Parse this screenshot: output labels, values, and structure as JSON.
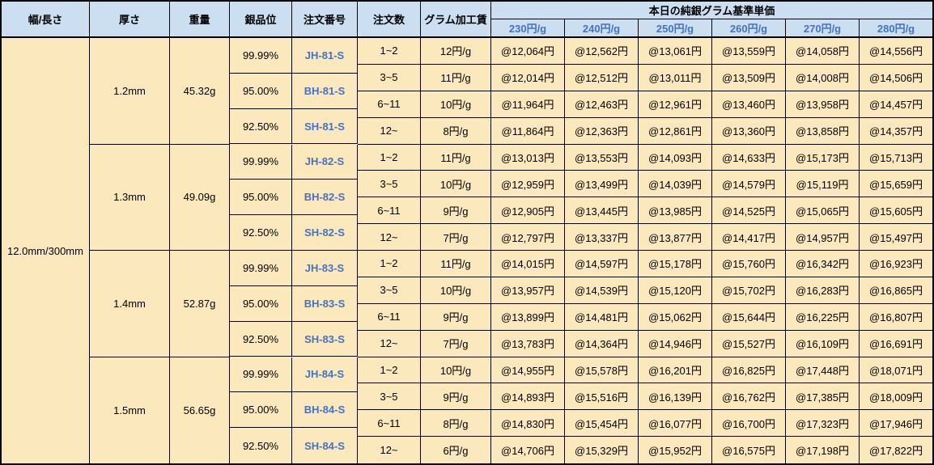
{
  "header": {
    "col_width_length": "幅/長さ",
    "col_thickness": "厚さ",
    "col_weight": "重量",
    "col_purity": "銀品位",
    "col_order_no": "注文番号",
    "col_order_qty": "注文数",
    "col_fee": "グラム加工賃",
    "price_group_title": "本日の純銀グラム基準単価",
    "price_columns": [
      "230円/g",
      "240円/g",
      "250円/g",
      "260円/g",
      "270円/g",
      "280円/g"
    ]
  },
  "size_label": "12.0mm/300mm",
  "groups": [
    {
      "thickness": "1.2mm",
      "weight": "45.32g",
      "purities": [
        {
          "purity": "99.99%",
          "order_no": "JH-81-S"
        },
        {
          "purity": "95.00%",
          "order_no": "BH-81-S"
        },
        {
          "purity": "92.50%",
          "order_no": "SH-81-S"
        }
      ],
      "rows": [
        {
          "qty": "1~2",
          "fee": "12円/g",
          "prices": [
            "@12,064円",
            "@12,562円",
            "@13,061円",
            "@13,559円",
            "@14,058円",
            "@14,556円"
          ]
        },
        {
          "qty": "3~5",
          "fee": "11円/g",
          "prices": [
            "@12,014円",
            "@12,512円",
            "@13,011円",
            "@13,509円",
            "@14,008円",
            "@14,506円"
          ]
        },
        {
          "qty": "6~11",
          "fee": "10円/g",
          "prices": [
            "@11,964円",
            "@12,463円",
            "@12,961円",
            "@13,460円",
            "@13,958円",
            "@14,457円"
          ]
        },
        {
          "qty": "12~",
          "fee": "8円/g",
          "prices": [
            "@11,864円",
            "@12,363円",
            "@12,861円",
            "@13,360円",
            "@13,858円",
            "@14,357円"
          ]
        }
      ]
    },
    {
      "thickness": "1.3mm",
      "weight": "49.09g",
      "purities": [
        {
          "purity": "99.99%",
          "order_no": "JH-82-S"
        },
        {
          "purity": "95.00%",
          "order_no": "BH-82-S"
        },
        {
          "purity": "92.50%",
          "order_no": "SH-82-S"
        }
      ],
      "rows": [
        {
          "qty": "1~2",
          "fee": "11円/g",
          "prices": [
            "@13,013円",
            "@13,553円",
            "@14,093円",
            "@14,633円",
            "@15,173円",
            "@15,713円"
          ]
        },
        {
          "qty": "3~5",
          "fee": "10円/g",
          "prices": [
            "@12,959円",
            "@13,499円",
            "@14,039円",
            "@14,579円",
            "@15,119円",
            "@15,659円"
          ]
        },
        {
          "qty": "6~11",
          "fee": "9円/g",
          "prices": [
            "@12,905円",
            "@13,445円",
            "@13,985円",
            "@14,525円",
            "@15,065円",
            "@15,605円"
          ]
        },
        {
          "qty": "12~",
          "fee": "7円/g",
          "prices": [
            "@12,797円",
            "@13,337円",
            "@13,877円",
            "@14,417円",
            "@14,957円",
            "@15,497円"
          ]
        }
      ]
    },
    {
      "thickness": "1.4mm",
      "weight": "52.87g",
      "purities": [
        {
          "purity": "99.99%",
          "order_no": "JH-83-S"
        },
        {
          "purity": "95.00%",
          "order_no": "BH-83-S"
        },
        {
          "purity": "92.50%",
          "order_no": "SH-83-S"
        }
      ],
      "rows": [
        {
          "qty": "1~2",
          "fee": "11円/g",
          "prices": [
            "@14,015円",
            "@14,597円",
            "@15,178円",
            "@15,760円",
            "@16,342円",
            "@16,923円"
          ]
        },
        {
          "qty": "3~5",
          "fee": "10円/g",
          "prices": [
            "@13,957円",
            "@14,539円",
            "@15,120円",
            "@15,702円",
            "@16,283円",
            "@16,865円"
          ]
        },
        {
          "qty": "6~11",
          "fee": "9円/g",
          "prices": [
            "@13,899円",
            "@14,481円",
            "@15,062円",
            "@15,644円",
            "@16,225円",
            "@16,807円"
          ]
        },
        {
          "qty": "12~",
          "fee": "7円/g",
          "prices": [
            "@13,783円",
            "@14,364円",
            "@14,946円",
            "@15,527円",
            "@16,109円",
            "@16,691円"
          ]
        }
      ]
    },
    {
      "thickness": "1.5mm",
      "weight": "56.65g",
      "purities": [
        {
          "purity": "99.99%",
          "order_no": "JH-84-S"
        },
        {
          "purity": "95.00%",
          "order_no": "BH-84-S"
        },
        {
          "purity": "92.50%",
          "order_no": "SH-84-S"
        }
      ],
      "rows": [
        {
          "qty": "1~2",
          "fee": "10円/g",
          "prices": [
            "@14,955円",
            "@15,578円",
            "@16,201円",
            "@16,825円",
            "@17,448円",
            "@18,071円"
          ]
        },
        {
          "qty": "3~5",
          "fee": "9円/g",
          "prices": [
            "@14,893円",
            "@15,516円",
            "@16,139円",
            "@16,762円",
            "@17,385円",
            "@18,009円"
          ]
        },
        {
          "qty": "6~11",
          "fee": "8円/g",
          "prices": [
            "@14,830円",
            "@15,454円",
            "@16,077円",
            "@16,700円",
            "@17,323円",
            "@17,946円"
          ]
        },
        {
          "qty": "12~",
          "fee": "6円/g",
          "prices": [
            "@14,706円",
            "@15,329円",
            "@15,952円",
            "@16,575円",
            "@17,198円",
            "@17,822円"
          ]
        }
      ]
    }
  ],
  "colors": {
    "header_bg": "#CBDFF1",
    "cell_bg": "#FBE9BD",
    "accent_blue": "#4472C4",
    "border": "#000000"
  }
}
